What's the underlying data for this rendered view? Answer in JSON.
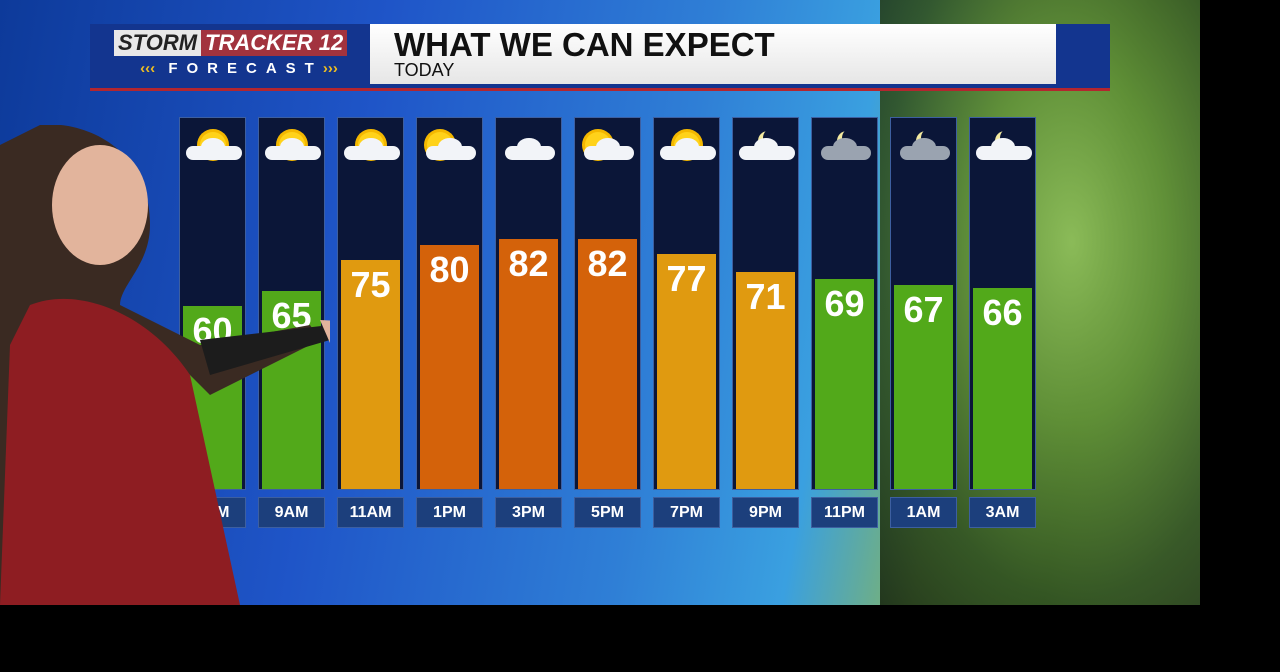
{
  "header": {
    "logo_storm": "STORM",
    "logo_tracker": "TRACKER",
    "logo_number": "12",
    "logo_sub": "FORECAST",
    "title": "WHAT WE CAN EXPECT",
    "subtitle": "TODAY"
  },
  "colors": {
    "cool": "#52a91a",
    "warm": "#e09a10",
    "hot": "#d4620a"
  },
  "chart_data": {
    "type": "bar",
    "categories": [
      "7AM",
      "9AM",
      "11AM",
      "1PM",
      "3PM",
      "5PM",
      "7PM",
      "9PM",
      "11PM",
      "1AM",
      "3AM"
    ],
    "values": [
      60,
      65,
      75,
      80,
      82,
      82,
      77,
      71,
      69,
      67,
      66
    ],
    "icons": [
      "partly-sunny",
      "partly-sunny",
      "partly-sunny",
      "mostly-cloudy",
      "cloudy",
      "mostly-cloudy",
      "partly-sunny",
      "partly-cloudy-night",
      "mostly-cloudy-night",
      "mostly-cloudy-night",
      "partly-cloudy-night"
    ],
    "title": "WHAT WE CAN EXPECT",
    "xlabel": "",
    "ylabel": "",
    "grid": false
  }
}
